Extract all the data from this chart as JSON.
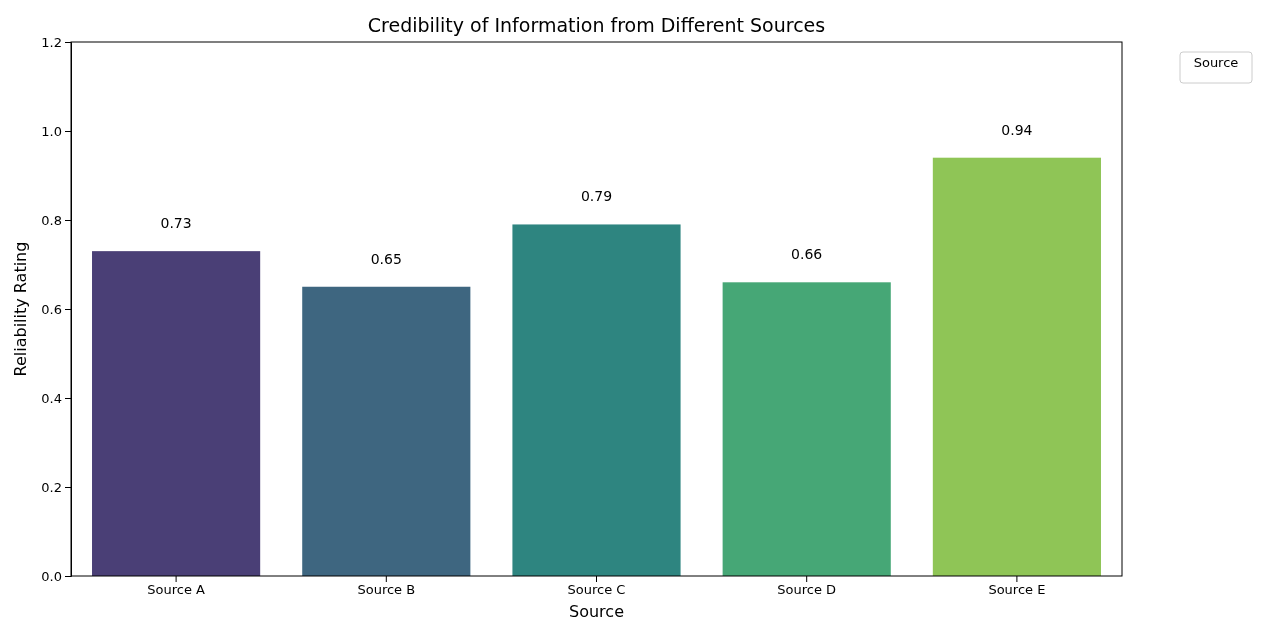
{
  "chart_data": {
    "type": "bar",
    "title": "Credibility of Information from Different Sources",
    "xlabel": "Source",
    "ylabel": "Reliability Rating",
    "legend_title": "Source",
    "categories": [
      "Source A",
      "Source B",
      "Source C",
      "Source D",
      "Source E"
    ],
    "values": [
      0.73,
      0.65,
      0.79,
      0.66,
      0.94
    ],
    "colors": [
      "#4a3f76",
      "#3e6680",
      "#2e8580",
      "#46a776",
      "#8fc556"
    ],
    "data_labels": true,
    "ylim": [
      0,
      1.2
    ],
    "yticks": [
      {
        "value": 0,
        "label": "0.0"
      },
      {
        "value": 0.2,
        "label": "0.2"
      },
      {
        "value": 0.4,
        "label": "0.4"
      },
      {
        "value": 0.6,
        "label": "0.6"
      },
      {
        "value": 0.8,
        "label": "0.8"
      },
      {
        "value": 1,
        "label": "1.0"
      },
      {
        "value": 1.2,
        "label": "1.2"
      }
    ]
  }
}
